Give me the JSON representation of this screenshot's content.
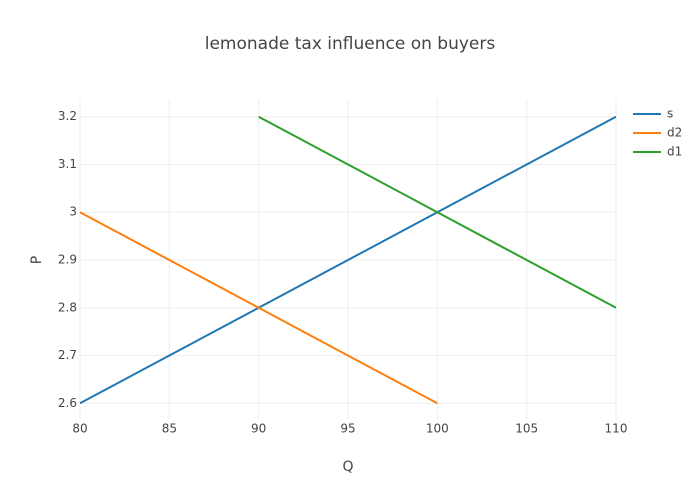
{
  "chart_data": {
    "type": "line",
    "title": "lemonade tax influence on buyers",
    "x_label": "Q",
    "y_label": "P",
    "xlim": [
      80,
      110
    ],
    "ylim": [
      2.565,
      3.235
    ],
    "xticks": [
      80,
      85,
      90,
      95,
      100,
      105,
      110
    ],
    "yticks": [
      2.6,
      2.7,
      2.8,
      2.9,
      3,
      3.1,
      3.2
    ],
    "grid": true,
    "legend": "right",
    "series": [
      {
        "name": "s",
        "color": "#1f77b4",
        "x": [
          80,
          90,
          100,
          110
        ],
        "values": [
          2.6,
          2.8,
          3.0,
          3.2
        ]
      },
      {
        "name": "d2",
        "color": "#ff7f0e",
        "x": [
          80,
          90,
          100
        ],
        "values": [
          3.0,
          2.8,
          2.6
        ]
      },
      {
        "name": "d1",
        "color": "#2ca02c",
        "x": [
          90,
          100,
          110
        ],
        "values": [
          3.2,
          3.0,
          2.8
        ]
      }
    ]
  }
}
